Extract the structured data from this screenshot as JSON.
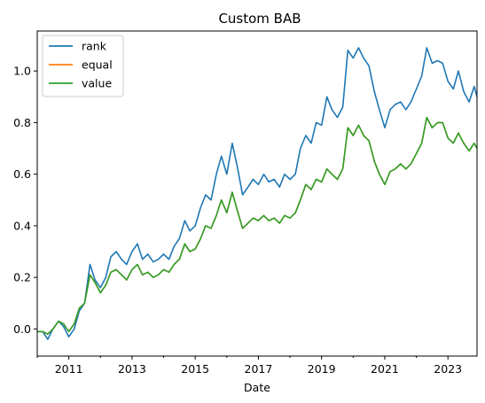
{
  "chart_data": {
    "type": "line",
    "title": "Custom BAB",
    "xlabel": "Date",
    "ylabel": "",
    "xlim": [
      2010.0,
      2023.92
    ],
    "ylim": [
      -0.105,
      1.155
    ],
    "x_ticks": [
      "2011",
      "2013",
      "2015",
      "2017",
      "2019",
      "2021",
      "2023"
    ],
    "y_ticks": [
      "0.0",
      "0.2",
      "0.4",
      "0.6",
      "0.8",
      "1.0"
    ],
    "grid": false,
    "legend_position": "top-left",
    "x": [
      2010.0,
      2010.17,
      2010.33,
      2010.5,
      2010.67,
      2010.83,
      2011.0,
      2011.17,
      2011.33,
      2011.5,
      2011.67,
      2011.83,
      2012.0,
      2012.17,
      2012.33,
      2012.5,
      2012.67,
      2012.83,
      2013.0,
      2013.17,
      2013.33,
      2013.5,
      2013.67,
      2013.83,
      2014.0,
      2014.17,
      2014.33,
      2014.5,
      2014.67,
      2014.83,
      2015.0,
      2015.17,
      2015.33,
      2015.5,
      2015.67,
      2015.83,
      2016.0,
      2016.17,
      2016.33,
      2016.5,
      2016.67,
      2016.83,
      2017.0,
      2017.17,
      2017.33,
      2017.5,
      2017.67,
      2017.83,
      2018.0,
      2018.17,
      2018.33,
      2018.5,
      2018.67,
      2018.83,
      2019.0,
      2019.17,
      2019.33,
      2019.5,
      2019.67,
      2019.83,
      2020.0,
      2020.17,
      2020.33,
      2020.5,
      2020.67,
      2020.83,
      2021.0,
      2021.17,
      2021.33,
      2021.5,
      2021.67,
      2021.83,
      2022.0,
      2022.17,
      2022.33,
      2022.5,
      2022.67,
      2022.83,
      2023.0,
      2023.17,
      2023.33,
      2023.5,
      2023.67,
      2023.83,
      2023.92
    ],
    "series": [
      {
        "name": "rank",
        "color": "#1f77b4",
        "values": [
          -0.01,
          -0.01,
          -0.04,
          0.0,
          0.03,
          0.01,
          -0.03,
          0.0,
          0.07,
          0.1,
          0.25,
          0.19,
          0.16,
          0.2,
          0.28,
          0.3,
          0.27,
          0.25,
          0.3,
          0.33,
          0.27,
          0.29,
          0.26,
          0.27,
          0.29,
          0.27,
          0.32,
          0.35,
          0.42,
          0.38,
          0.4,
          0.47,
          0.52,
          0.5,
          0.6,
          0.67,
          0.6,
          0.72,
          0.63,
          0.52,
          0.55,
          0.58,
          0.56,
          0.6,
          0.57,
          0.58,
          0.55,
          0.6,
          0.58,
          0.6,
          0.7,
          0.75,
          0.72,
          0.8,
          0.79,
          0.9,
          0.85,
          0.82,
          0.86,
          1.08,
          1.05,
          1.09,
          1.05,
          1.02,
          0.92,
          0.85,
          0.78,
          0.85,
          0.87,
          0.88,
          0.85,
          0.88,
          0.93,
          0.98,
          1.09,
          1.03,
          1.04,
          1.03,
          0.96,
          0.93,
          1.0,
          0.92,
          0.88,
          0.94,
          0.9
        ]
      },
      {
        "name": "equal",
        "color": "#ff7f0e",
        "values": [
          -0.01,
          -0.01,
          -0.02,
          0.0,
          0.03,
          0.02,
          -0.01,
          0.02,
          0.08,
          0.1,
          0.21,
          0.18,
          0.14,
          0.17,
          0.22,
          0.23,
          0.21,
          0.19,
          0.23,
          0.25,
          0.21,
          0.22,
          0.2,
          0.21,
          0.23,
          0.22,
          0.25,
          0.27,
          0.33,
          0.3,
          0.31,
          0.35,
          0.4,
          0.39,
          0.44,
          0.5,
          0.45,
          0.53,
          0.46,
          0.39,
          0.41,
          0.43,
          0.42,
          0.44,
          0.42,
          0.43,
          0.41,
          0.44,
          0.43,
          0.45,
          0.5,
          0.56,
          0.54,
          0.58,
          0.57,
          0.62,
          0.6,
          0.58,
          0.62,
          0.78,
          0.75,
          0.79,
          0.75,
          0.73,
          0.65,
          0.6,
          0.56,
          0.61,
          0.62,
          0.64,
          0.62,
          0.64,
          0.68,
          0.72,
          0.82,
          0.78,
          0.8,
          0.8,
          0.74,
          0.72,
          0.76,
          0.72,
          0.69,
          0.72,
          0.7
        ]
      },
      {
        "name": "value",
        "color": "#2ca02c",
        "values": [
          -0.01,
          -0.01,
          -0.02,
          0.0,
          0.03,
          0.02,
          -0.01,
          0.02,
          0.08,
          0.1,
          0.21,
          0.18,
          0.14,
          0.17,
          0.22,
          0.23,
          0.21,
          0.19,
          0.23,
          0.25,
          0.21,
          0.22,
          0.2,
          0.21,
          0.23,
          0.22,
          0.25,
          0.27,
          0.33,
          0.3,
          0.31,
          0.35,
          0.4,
          0.39,
          0.44,
          0.5,
          0.45,
          0.53,
          0.46,
          0.39,
          0.41,
          0.43,
          0.42,
          0.44,
          0.42,
          0.43,
          0.41,
          0.44,
          0.43,
          0.45,
          0.5,
          0.56,
          0.54,
          0.58,
          0.57,
          0.62,
          0.6,
          0.58,
          0.62,
          0.78,
          0.75,
          0.79,
          0.75,
          0.73,
          0.65,
          0.6,
          0.56,
          0.61,
          0.62,
          0.64,
          0.62,
          0.64,
          0.68,
          0.72,
          0.82,
          0.78,
          0.8,
          0.8,
          0.74,
          0.72,
          0.76,
          0.72,
          0.69,
          0.72,
          0.7
        ]
      }
    ]
  }
}
